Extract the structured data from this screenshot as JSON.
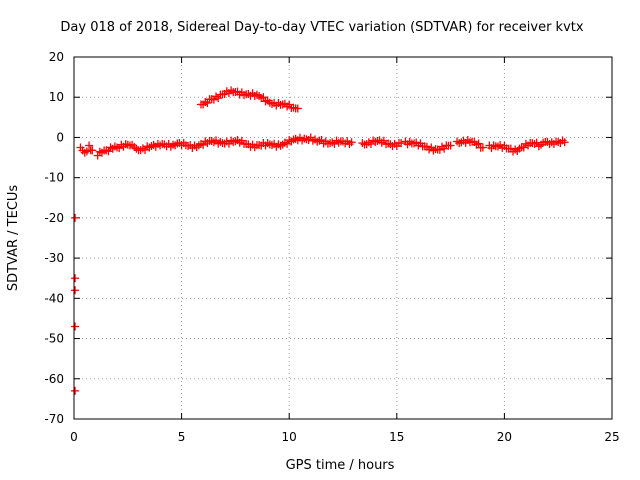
{
  "chart_data": {
    "type": "scatter",
    "title": "Day 018 of 2018, Sidereal Day-to-day VTEC variation (SDTVAR) for receiver kvtx",
    "xlabel": "GPS time / hours",
    "ylabel": "SDTVAR / TECUs",
    "xlim": [
      0,
      25
    ],
    "ylim": [
      -70,
      20
    ],
    "xticks": [
      "0",
      "5",
      "10",
      "15",
      "20",
      "25"
    ],
    "yticks": [
      "20",
      "10",
      "0",
      "-10",
      "-20",
      "-30",
      "-40",
      "-50",
      "-60",
      "-70"
    ],
    "grid": true,
    "marker": "plus",
    "series": [
      {
        "name": "SDTVAR",
        "color": "#ff0000",
        "segments": [
          {
            "x": [
              0.3,
              0.5,
              0.7,
              0.85
            ],
            "y": [
              -2.5,
              -3.8,
              -2.0,
              -3.2
            ]
          },
          {
            "x": [
              1.1,
              1.3,
              1.5,
              1.8,
              2.0,
              2.3,
              2.6,
              2.8
            ],
            "y": [
              -4.5,
              -3.8,
              -3.2,
              -2.8,
              -2.5,
              -2.3,
              -2.0,
              -2.4
            ]
          },
          {
            "x": [
              2.9,
              3.2,
              3.5,
              3.8,
              4.0,
              4.3,
              4.6,
              4.8,
              5.0,
              5.3,
              5.6,
              5.9,
              6.2,
              6.5,
              6.8,
              7.1,
              7.4,
              7.7,
              8.0,
              8.3,
              8.6,
              8.9,
              9.2,
              9.5,
              9.8,
              10.1,
              10.4,
              10.7,
              11.0,
              11.2,
              11.4,
              11.7,
              12.0,
              12.3,
              12.6,
              12.9
            ],
            "y": [
              -2.8,
              -2.7,
              -2.5,
              -2.3,
              -2.0,
              -2.2,
              -1.8,
              -1.5,
              -1.9,
              -2.1,
              -2.0,
              -1.6,
              -1.4,
              -1.2,
              -1.1,
              -1.0,
              -1.1,
              -1.3,
              -1.6,
              -1.8,
              -1.9,
              -2.0,
              -1.9,
              -1.7,
              -1.3,
              -1.0,
              -0.7,
              -0.3,
              0.0,
              -0.5,
              -0.8,
              -1.0,
              -1.2,
              -1.3,
              -1.5,
              -1.2
            ]
          },
          {
            "x": [
              13.4,
              13.7,
              14.0,
              14.3,
              14.6,
              14.9,
              15.2
            ],
            "y": [
              -1.4,
              -1.2,
              -1.1,
              -1.3,
              -1.5,
              -1.6,
              -1.4
            ]
          },
          {
            "x": [
              15.4,
              15.7,
              16.0,
              16.3,
              16.6,
              16.9,
              17.2,
              17.5
            ],
            "y": [
              -1.0,
              -1.5,
              -2.0,
              -2.2,
              -2.5,
              -3.0,
              -2.8,
              -2.0
            ]
          },
          {
            "x": [
              17.8,
              18.1,
              18.4,
              18.7,
              19.0
            ],
            "y": [
              -1.0,
              -0.8,
              -1.2,
              -1.8,
              -2.5
            ]
          },
          {
            "x": [
              19.3,
              19.6,
              19.9,
              20.2,
              20.5,
              20.8,
              21.1,
              21.4,
              21.7
            ],
            "y": [
              -2.0,
              -2.2,
              -2.6,
              -2.8,
              -3.0,
              -2.4,
              -2.0,
              -1.6,
              -1.8
            ]
          },
          {
            "x": [
              21.8,
              22.0,
              22.2,
              22.4,
              22.6,
              22.8
            ],
            "y": [
              -1.3,
              -1.1,
              -1.2,
              -1.0,
              -1.4,
              -1.2
            ]
          },
          {
            "x": [
              5.9,
              6.1,
              6.3,
              6.6,
              6.9,
              7.2,
              7.5,
              7.8,
              8.1,
              8.4,
              8.7,
              9.0,
              9.3,
              9.6,
              9.9,
              10.2,
              10.4
            ],
            "y": [
              8.2,
              8.8,
              9.5,
              10.2,
              10.7,
              11.0,
              11.3,
              11.2,
              10.8,
              10.3,
              9.8,
              9.2,
              8.6,
              8.1,
              7.7,
              7.4,
              7.2
            ]
          }
        ],
        "outliers": {
          "x": [
            0.05,
            0.05,
            0.05,
            0.05,
            0.05
          ],
          "y": [
            -20,
            -35,
            -38,
            -47,
            -63
          ]
        }
      }
    ]
  }
}
